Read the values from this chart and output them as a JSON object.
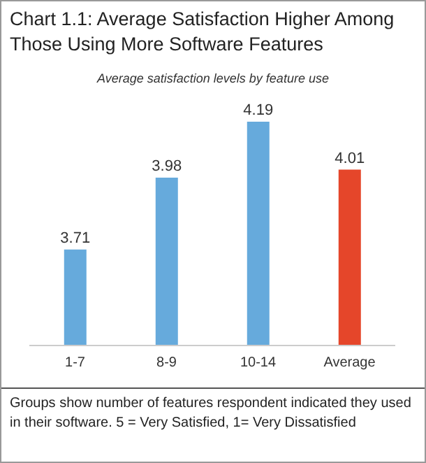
{
  "chart_data": {
    "type": "bar",
    "title": "Chart 1.1: Average Satisfaction Higher Among Those Using More Software Features",
    "subtitle": "Average satisfaction levels by feature use",
    "categories": [
      "1-7",
      "8-9",
      "10-14",
      "Average"
    ],
    "values": [
      3.71,
      3.98,
      4.19,
      4.01
    ],
    "colors": [
      "#66aadc",
      "#66aadc",
      "#66aadc",
      "#e5462a"
    ],
    "data_labels": true,
    "ylim": [
      3.35,
      4.19
    ],
    "grid": false,
    "legend": false,
    "annotations": [
      "Groups show number of features respondent indicated they used in their software. 5 = Very Satisfied, 1= Very Dissatisfied"
    ]
  }
}
